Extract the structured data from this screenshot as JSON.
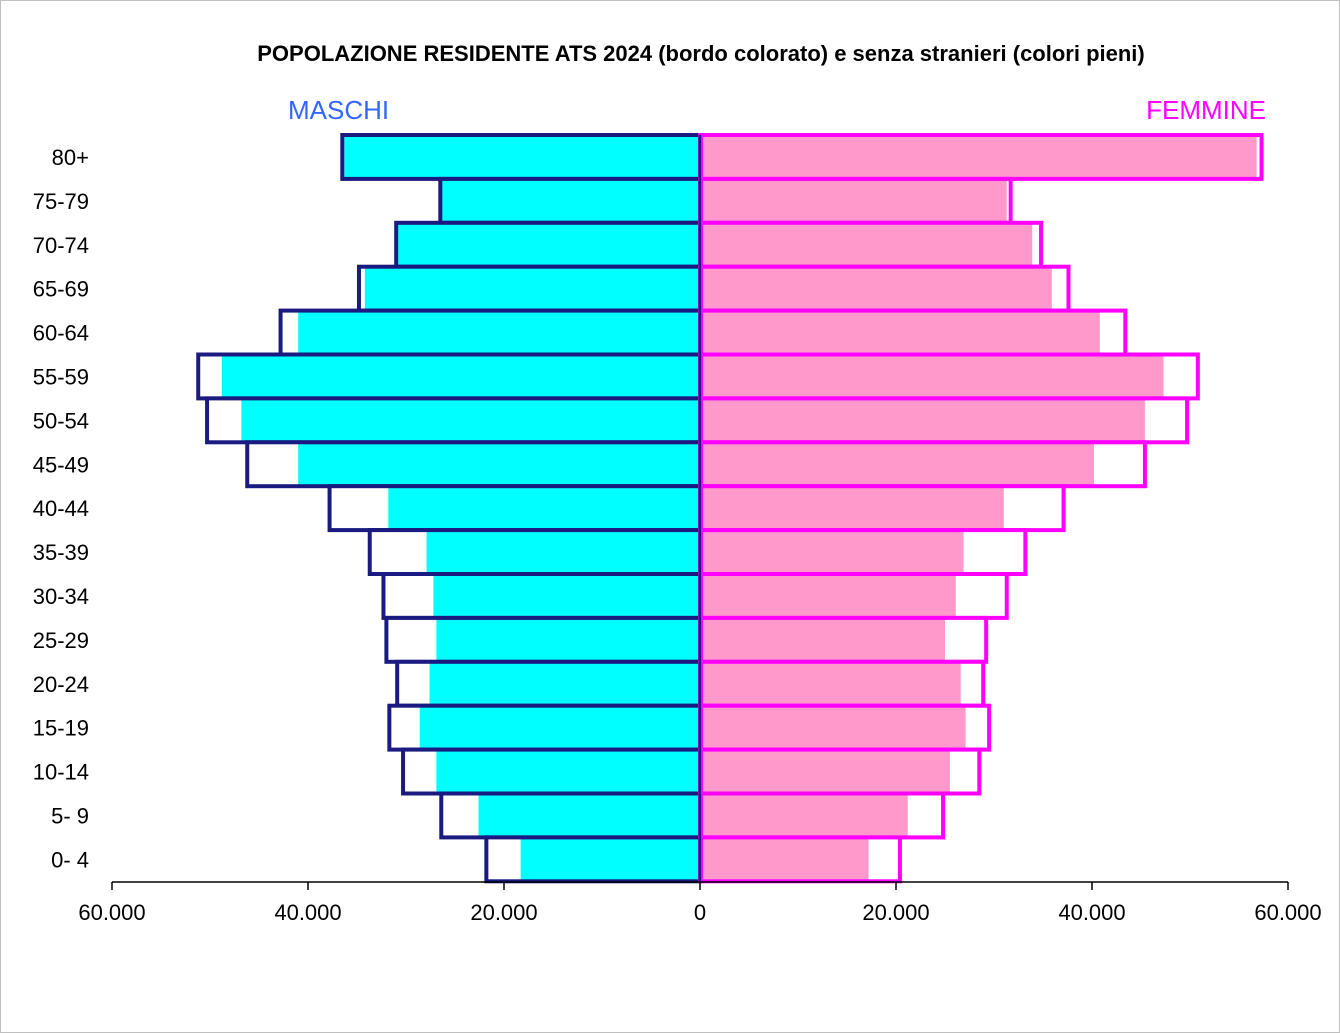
{
  "chart_data": {
    "type": "bar",
    "title": "POPOLAZIONE RESIDENTE ATS 2024 (bordo colorato) e senza stranieri (colori pieni)",
    "left_label": "MASCHI",
    "right_label": "FEMMINE",
    "categories": [
      "80+",
      "75-79",
      "70-74",
      "65-69",
      "60-64",
      "55-59",
      "50-54",
      "45-49",
      "40-44",
      "35-39",
      "30-34",
      "25-29",
      "20-24",
      "15-19",
      "10-14",
      "5- 9",
      "0- 4"
    ],
    "series": [
      {
        "name": "MASCHI",
        "values": [
          36500,
          26500,
          31000,
          34800,
          42800,
          51200,
          50300,
          46200,
          37800,
          33700,
          32300,
          32000,
          30900,
          31700,
          30300,
          26400,
          21800
        ]
      },
      {
        "name": "",
        "values": [
          36300,
          26400,
          30800,
          34200,
          41000,
          48800,
          46800,
          41000,
          31800,
          27900,
          27200,
          26900,
          27600,
          28600,
          26900,
          22600,
          18300
        ]
      },
      {
        "name": "FEMMINE",
        "values": [
          57300,
          31700,
          34800,
          37600,
          43400,
          50800,
          49700,
          45400,
          37100,
          33200,
          31300,
          29200,
          28900,
          29500,
          28500,
          24800,
          20400
        ]
      },
      {
        "name": "",
        "values": [
          56800,
          31300,
          33900,
          35900,
          40800,
          47300,
          45400,
          40200,
          31000,
          26900,
          26100,
          25000,
          26600,
          27100,
          25500,
          21200,
          17200
        ]
      }
    ],
    "xlim": [
      -60000,
      60000
    ],
    "xticks": [
      -60000,
      -40000,
      -20000,
      0,
      20000,
      40000,
      60000
    ],
    "xtick_labels": [
      "60.000",
      "40.000",
      "20.000",
      "0",
      "20.000",
      "40.000",
      "60.000"
    ],
    "grid": false,
    "legend": "none",
    "colors": {
      "male_fill": "#00ffff",
      "male_border": "#1a1a80",
      "female_fill": "#ff99cc",
      "female_border": "#ff00ff",
      "male_label": "#3366ff",
      "female_label": "#ff00ff"
    }
  }
}
